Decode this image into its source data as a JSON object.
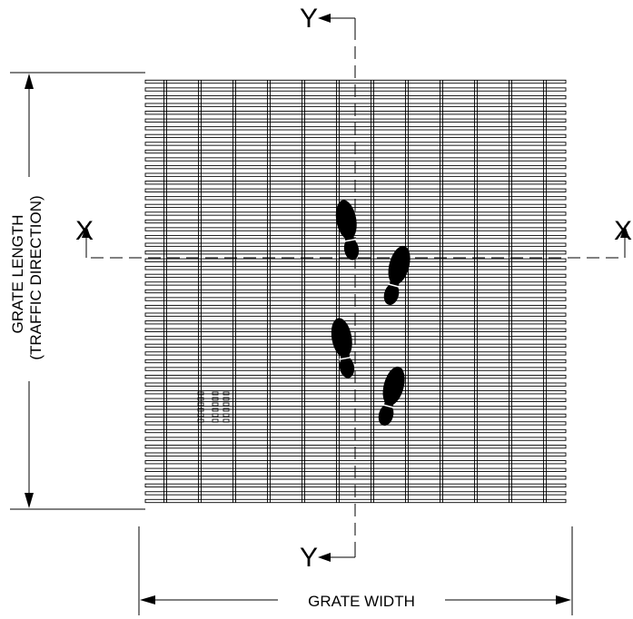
{
  "labels": {
    "section_y": "Y",
    "section_x": "X",
    "grate_length": "GRATE LENGTH",
    "traffic_direction": "(TRAFFIC DIRECTION)",
    "grate_width": "GRATE WIDTH"
  },
  "colors": {
    "line": "#000000",
    "background": "#ffffff"
  },
  "icons": [
    "footprint-icon"
  ]
}
